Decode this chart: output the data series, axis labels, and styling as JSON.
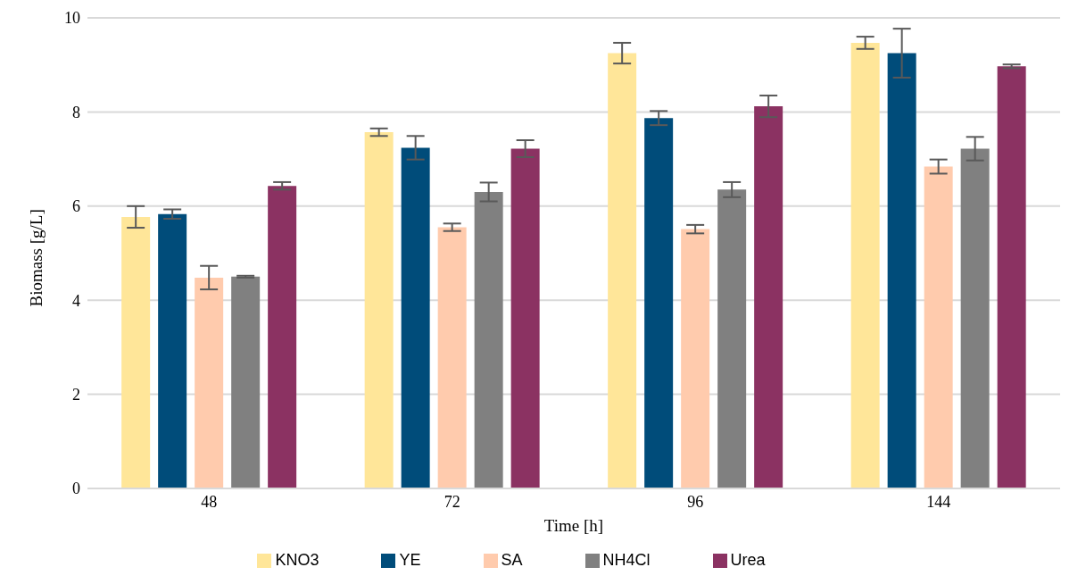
{
  "chart_data": {
    "type": "bar",
    "xlabel": "Time [h]",
    "ylabel": "Biomass [g/L]",
    "categories": [
      "48",
      "72",
      "96",
      "144"
    ],
    "ylim": [
      0,
      10
    ],
    "yticks": [
      0,
      2,
      4,
      6,
      8,
      10
    ],
    "grid": "y",
    "legend": "bottom",
    "series": [
      {
        "name": "KNO3",
        "color": "#ffe699",
        "values": [
          5.77,
          7.57,
          9.25,
          9.47
        ],
        "errors": [
          0.23,
          0.08,
          0.22,
          0.13
        ]
      },
      {
        "name": "YE",
        "color": "#004c7a",
        "values": [
          5.83,
          7.24,
          7.87,
          9.25
        ],
        "errors": [
          0.1,
          0.25,
          0.15,
          0.52
        ]
      },
      {
        "name": "SA",
        "color": "#ffcbad",
        "values": [
          4.48,
          5.55,
          5.51,
          6.84
        ],
        "errors": [
          0.25,
          0.08,
          0.09,
          0.15
        ]
      },
      {
        "name": "NH4Cl",
        "color": "#808080",
        "values": [
          4.5,
          6.3,
          6.35,
          7.22
        ],
        "errors": [
          0.02,
          0.2,
          0.16,
          0.25
        ]
      },
      {
        "name": "Urea",
        "color": "#8b3262",
        "values": [
          6.43,
          7.22,
          8.12,
          8.97
        ],
        "errors": [
          0.08,
          0.18,
          0.23,
          0.04
        ]
      }
    ]
  }
}
